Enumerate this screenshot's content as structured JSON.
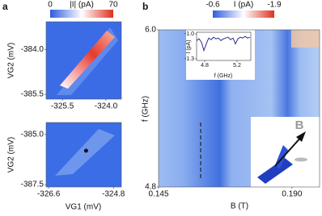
{
  "panel_labels": [
    "a",
    "b"
  ],
  "chart_data": [
    {
      "type": "heatmap",
      "y_label": "VG2 (mV)",
      "colorbar": {
        "label": "|I| (pA)",
        "lim": [
          0,
          70
        ],
        "ticks": [
          0,
          70
        ]
      },
      "xlim": [
        -326.06,
        -323.47
      ],
      "xticks": [
        -325.5,
        {
          "value": -324,
          "label": "-324.0"
        }
      ],
      "ylim": [
        -385.66,
        -383.08
      ],
      "yticks": [
        {
          "value": -384,
          "label": "-384.0"
        },
        -385.5
      ]
    },
    {
      "type": "heatmap",
      "x_label": "VG1 (mV)",
      "y_label": "VG2 (mV)",
      "xlim": [
        -326.67,
        -324.58
      ],
      "xticks": [
        -326.6,
        -324.8
      ],
      "ylim": [
        -387.62,
        -384.4
      ],
      "yticks": [
        {
          "value": -385,
          "label": "-385.0"
        },
        -387.5
      ],
      "marker": {
        "x": -325.56,
        "y": -385.81
      }
    },
    {
      "type": "heatmap",
      "x_label": "B (T)",
      "y_label": "f (GHz)",
      "annotation": "B",
      "colorbar": {
        "label": "I (pA)",
        "lim": [
          -0.6,
          -1.9
        ],
        "ticks": [
          -0.6,
          -1.9
        ]
      },
      "xlim": [
        0.145,
        0.1993
      ],
      "xticks": [
        0.145,
        {
          "value": 0.19,
          "label": "0.190"
        }
      ],
      "ylim": [
        4.8,
        6.0
      ],
      "yticks": [
        {
          "value": 6,
          "label": "6.0"
        },
        4.8
      ]
    },
    {
      "type": "line",
      "x_label": "f (GHz)",
      "y_label": "I (pA)",
      "x": [
        4.7,
        4.73,
        4.76,
        4.79,
        4.82,
        4.85,
        4.88,
        4.91,
        4.94,
        4.97,
        5.0,
        5.03,
        5.06,
        5.09,
        5.12,
        5.15,
        5.18,
        5.21,
        5.24,
        5.27,
        5.3,
        5.33,
        5.36
      ],
      "series": [
        {
          "color": "#2b2b8a",
          "values": [
            -1.08,
            -1.06,
            -1.1,
            -1.2,
            -1.12,
            -1.05,
            -1.07,
            -1.04,
            -1.06,
            -1.05,
            -1.08,
            -1.06,
            -1.05,
            -1.04,
            -1.07,
            -1.05,
            -1.12,
            -1.06,
            -1.04,
            -1.05,
            -1.03,
            -1.05,
            -1.04
          ]
        }
      ],
      "xlim": [
        4.7,
        5.37
      ],
      "xticks": [
        4.8,
        5.2
      ],
      "ylim": [
        -1.32,
        -0.98
      ],
      "yticks": [
        {
          "value": -1,
          "label": "-1.0"
        },
        -1.3
      ]
    }
  ]
}
